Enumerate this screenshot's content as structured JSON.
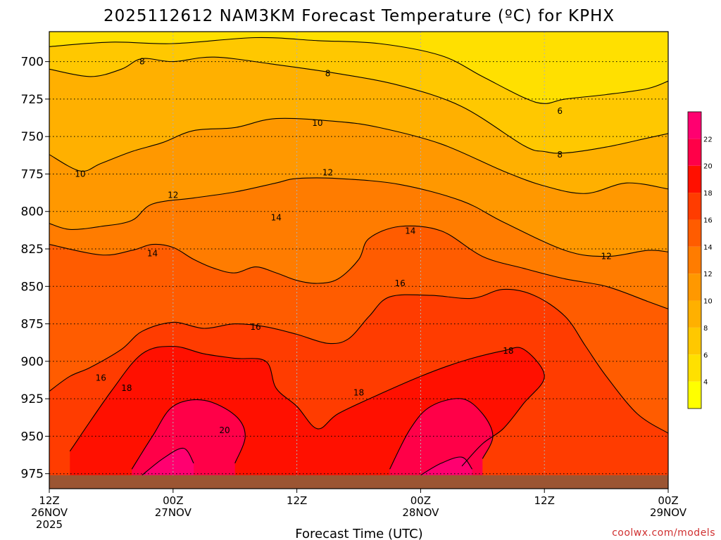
{
  "chart_data": {
    "type": "heatmap",
    "title": "2025112612 NAM3KM Forecast Temperature (ºC) for KPHX",
    "xlabel": "Forecast Time (UTC)",
    "ylabel": "",
    "x_ticks": [
      {
        "hour": 0,
        "lines": [
          "12Z",
          "26NOV",
          "2025"
        ]
      },
      {
        "hour": 12,
        "lines": [
          "00Z",
          "27NOV"
        ]
      },
      {
        "hour": 24,
        "lines": [
          "12Z"
        ]
      },
      {
        "hour": 36,
        "lines": [
          "00Z",
          "28NOV"
        ]
      },
      {
        "hour": 48,
        "lines": [
          "12Z"
        ]
      },
      {
        "hour": 60,
        "lines": [
          "00Z",
          "29NOV"
        ]
      }
    ],
    "xlim": [
      0,
      60
    ],
    "y_ticks": [
      700,
      725,
      750,
      775,
      800,
      825,
      850,
      875,
      900,
      925,
      950,
      975
    ],
    "ylim": [
      680,
      985
    ],
    "grid": true,
    "colorbar": {
      "ticks": [
        4,
        6,
        8,
        10,
        12,
        14,
        16,
        18,
        20,
        22
      ],
      "bands": [
        {
          "from": 2,
          "to": 4,
          "color": "#ffff00"
        },
        {
          "from": 4,
          "to": 6,
          "color": "#ffe000"
        },
        {
          "from": 6,
          "to": 8,
          "color": "#ffc800"
        },
        {
          "from": 8,
          "to": 10,
          "color": "#ffb000"
        },
        {
          "from": 10,
          "to": 12,
          "color": "#ff9800"
        },
        {
          "from": 12,
          "to": 14,
          "color": "#ff7c00"
        },
        {
          "from": 14,
          "to": 16,
          "color": "#ff5c00"
        },
        {
          "from": 16,
          "to": 18,
          "color": "#ff3c00"
        },
        {
          "from": 18,
          "to": 20,
          "color": "#ff1000"
        },
        {
          "from": 20,
          "to": 22,
          "color": "#ff0048"
        },
        {
          "from": 22,
          "to": 24,
          "color": "#ff0070"
        }
      ]
    },
    "surface_color": "#9b5533",
    "surface_pressure": 976,
    "isotherms": [
      {
        "value": 6,
        "points": [
          [
            0,
            690
          ],
          [
            6,
            687
          ],
          [
            12,
            688
          ],
          [
            20,
            684
          ],
          [
            26,
            686
          ],
          [
            32,
            688
          ],
          [
            38,
            696
          ],
          [
            42,
            710
          ],
          [
            46,
            724
          ],
          [
            48,
            728
          ],
          [
            50,
            725
          ],
          [
            54,
            722
          ],
          [
            58,
            718
          ],
          [
            60,
            713
          ]
        ]
      },
      {
        "value": 8,
        "points": [
          [
            0,
            705
          ],
          [
            4,
            710
          ],
          [
            7,
            705
          ],
          [
            9,
            698
          ],
          [
            12,
            700
          ],
          [
            16,
            697
          ],
          [
            22,
            702
          ],
          [
            28,
            708
          ],
          [
            34,
            716
          ],
          [
            40,
            730
          ],
          [
            46,
            756
          ],
          [
            48,
            760
          ],
          [
            50,
            761
          ],
          [
            54,
            757
          ],
          [
            58,
            751
          ],
          [
            60,
            748
          ]
        ]
      },
      {
        "value": 10,
        "points": [
          [
            0,
            762
          ],
          [
            3,
            773
          ],
          [
            5,
            768
          ],
          [
            8,
            760
          ],
          [
            11,
            754
          ],
          [
            14,
            746
          ],
          [
            18,
            744
          ],
          [
            22,
            738
          ],
          [
            28,
            740
          ],
          [
            32,
            744
          ],
          [
            38,
            755
          ],
          [
            44,
            773
          ],
          [
            48,
            783
          ],
          [
            52,
            788
          ],
          [
            56,
            781
          ],
          [
            60,
            785
          ]
        ]
      },
      {
        "value": 12,
        "points": [
          [
            0,
            808
          ],
          [
            2,
            812
          ],
          [
            5,
            810
          ],
          [
            8,
            806
          ],
          [
            10,
            795
          ],
          [
            14,
            791
          ],
          [
            18,
            787
          ],
          [
            22,
            781
          ],
          [
            24,
            778
          ],
          [
            28,
            778
          ],
          [
            34,
            782
          ],
          [
            40,
            793
          ],
          [
            44,
            807
          ],
          [
            50,
            826
          ],
          [
            54,
            830
          ],
          [
            58,
            826
          ],
          [
            60,
            827
          ]
        ]
      },
      {
        "value": 14,
        "points": [
          [
            0,
            822
          ],
          [
            5,
            829
          ],
          [
            8,
            826
          ],
          [
            10,
            822
          ],
          [
            12,
            824
          ],
          [
            14,
            832
          ],
          [
            16,
            838
          ],
          [
            18,
            841
          ],
          [
            20,
            837
          ],
          [
            22,
            841
          ],
          [
            24,
            846
          ],
          [
            26,
            848
          ],
          [
            28,
            845
          ],
          [
            30,
            832
          ],
          [
            31,
            818
          ],
          [
            34,
            810
          ],
          [
            38,
            813
          ],
          [
            42,
            830
          ],
          [
            46,
            838
          ],
          [
            50,
            845
          ],
          [
            54,
            850
          ],
          [
            58,
            860
          ],
          [
            60,
            865
          ]
        ]
      },
      {
        "value": 16,
        "points": [
          [
            0,
            920
          ],
          [
            2,
            910
          ],
          [
            4,
            904
          ],
          [
            7,
            892
          ],
          [
            9,
            880
          ],
          [
            12,
            874
          ],
          [
            15,
            878
          ],
          [
            18,
            875
          ],
          [
            21,
            877
          ],
          [
            24,
            882
          ],
          [
            27,
            888
          ],
          [
            29,
            885
          ],
          [
            31,
            870
          ],
          [
            33,
            857
          ],
          [
            37,
            856
          ],
          [
            41,
            858
          ],
          [
            44,
            852
          ],
          [
            47,
            856
          ],
          [
            50,
            870
          ],
          [
            52,
            890
          ],
          [
            54,
            910
          ],
          [
            57,
            935
          ],
          [
            60,
            948
          ]
        ]
      },
      {
        "value": 18,
        "points": [
          [
            2,
            960
          ],
          [
            6,
            920
          ],
          [
            9,
            895
          ],
          [
            12,
            890
          ],
          [
            15,
            895
          ],
          [
            18,
            898
          ],
          [
            21,
            900
          ],
          [
            22,
            918
          ],
          [
            24,
            930
          ],
          [
            26,
            945
          ],
          [
            28,
            935
          ],
          [
            32,
            922
          ],
          [
            36,
            910
          ],
          [
            40,
            900
          ],
          [
            44,
            893
          ],
          [
            46,
            892
          ],
          [
            48,
            910
          ],
          [
            46,
            928
          ],
          [
            44,
            945
          ],
          [
            42,
            955
          ],
          [
            40,
            970
          ]
        ]
      },
      {
        "value": 20,
        "points": [
          [
            8,
            972
          ],
          [
            10,
            950
          ],
          [
            12,
            930
          ],
          [
            15,
            926
          ],
          [
            18,
            936
          ],
          [
            19,
            950
          ],
          [
            18,
            968
          ],
          [
            33,
            972
          ],
          [
            35,
            945
          ],
          [
            37,
            930
          ],
          [
            40,
            925
          ],
          [
            42,
            935
          ],
          [
            43,
            950
          ],
          [
            42,
            965
          ]
        ]
      },
      {
        "value": 22,
        "points": [
          [
            9,
            976
          ],
          [
            11,
            965
          ],
          [
            13,
            958
          ],
          [
            14,
            968
          ],
          [
            36,
            976
          ],
          [
            38,
            968
          ],
          [
            40,
            964
          ],
          [
            41,
            972
          ]
        ]
      }
    ],
    "contour_labels": [
      {
        "text": "8",
        "x": 9,
        "y": 700
      },
      {
        "text": "8",
        "x": 27,
        "y": 708
      },
      {
        "text": "6",
        "x": 49.5,
        "y": 733
      },
      {
        "text": "8",
        "x": 49.5,
        "y": 762
      },
      {
        "text": "10",
        "x": 26,
        "y": 741
      },
      {
        "text": "10",
        "x": 3,
        "y": 775
      },
      {
        "text": "12",
        "x": 12,
        "y": 789
      },
      {
        "text": "12",
        "x": 27,
        "y": 774
      },
      {
        "text": "12",
        "x": 54,
        "y": 830
      },
      {
        "text": "14",
        "x": 22,
        "y": 804
      },
      {
        "text": "14",
        "x": 10,
        "y": 828
      },
      {
        "text": "14",
        "x": 35,
        "y": 813
      },
      {
        "text": "16",
        "x": 34,
        "y": 848
      },
      {
        "text": "16",
        "x": 20,
        "y": 877
      },
      {
        "text": "16",
        "x": 5,
        "y": 911
      },
      {
        "text": "18",
        "x": 7.5,
        "y": 918
      },
      {
        "text": "18",
        "x": 30,
        "y": 921
      },
      {
        "text": "18",
        "x": 44.5,
        "y": 893
      },
      {
        "text": "20",
        "x": 17,
        "y": 946
      }
    ]
  },
  "footer": {
    "credit": "coolwx.com/models"
  }
}
